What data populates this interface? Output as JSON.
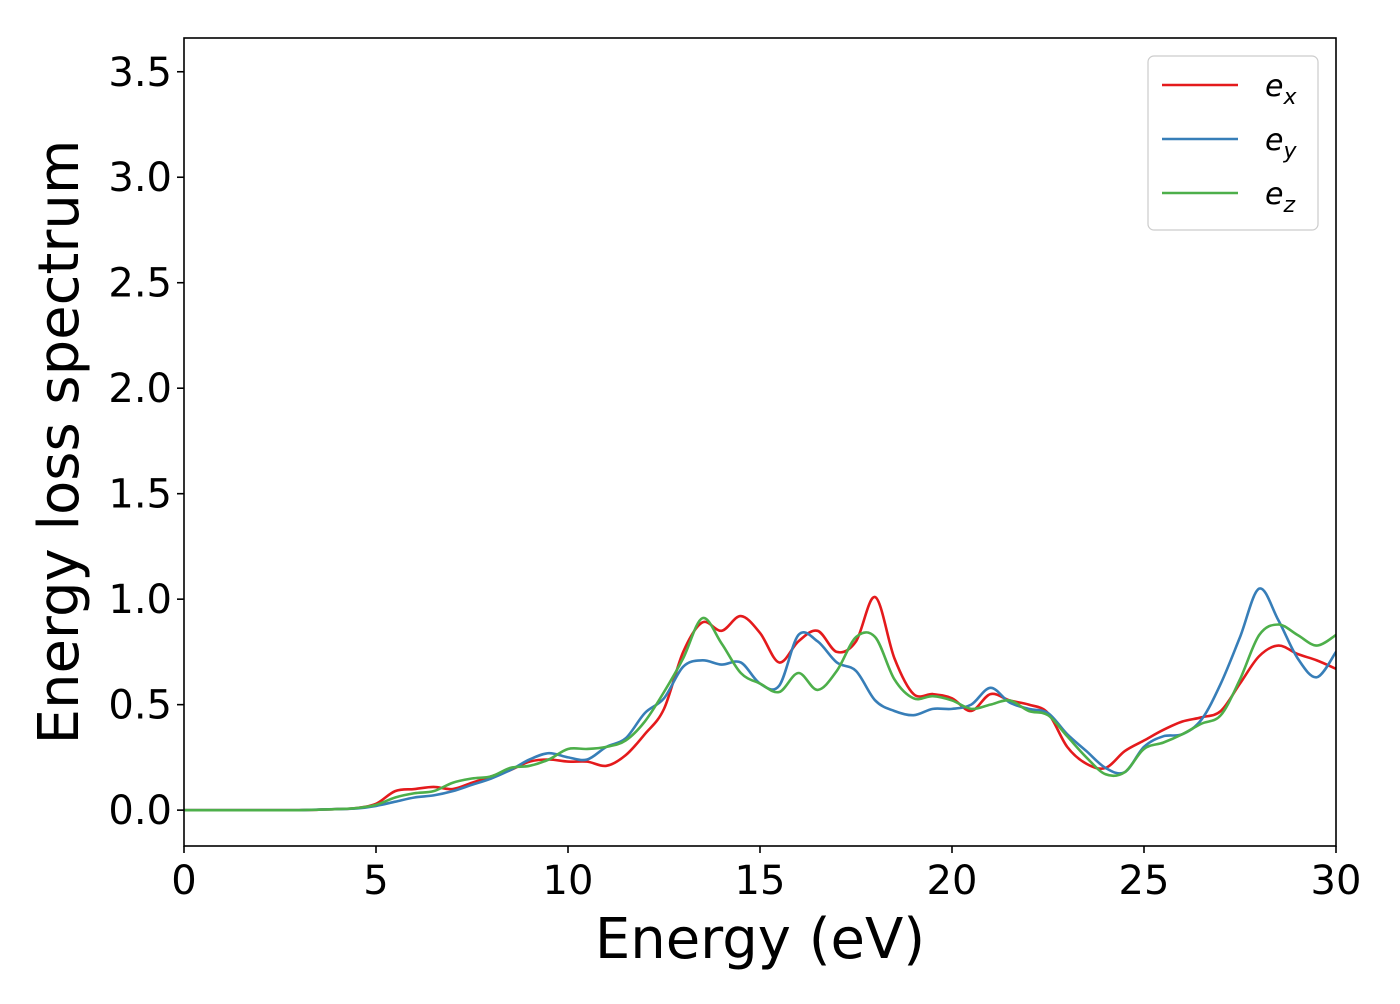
{
  "chart_data": {
    "type": "line",
    "title": "",
    "xlabel": "Energy (eV)",
    "ylabel": "Energy loss spectrum",
    "xlim": [
      0,
      30
    ],
    "ylim": [
      -0.17,
      3.66
    ],
    "xticks": [
      0,
      5,
      10,
      15,
      20,
      25,
      30
    ],
    "xtick_labels": [
      "0",
      "5",
      "10",
      "15",
      "20",
      "25",
      "30"
    ],
    "yticks": [
      0.0,
      0.5,
      1.0,
      1.5,
      2.0,
      2.5,
      3.0,
      3.5
    ],
    "ytick_labels": [
      "0.0",
      "0.5",
      "1.0",
      "1.5",
      "2.0",
      "2.5",
      "3.0",
      "3.5"
    ],
    "grid": false,
    "legend_position": "top-right",
    "series": [
      {
        "name": "e_x",
        "legend_base": "e",
        "legend_sub": "x",
        "color": "#e41a1c",
        "x": [
          0,
          1,
          2,
          3,
          4,
          4.5,
          5,
          5.5,
          6,
          6.5,
          7,
          7.5,
          8,
          8.5,
          9,
          9.5,
          10,
          10.5,
          11,
          11.5,
          12,
          12.5,
          13,
          13.5,
          14,
          14.5,
          15,
          15.5,
          16,
          16.5,
          17,
          17.5,
          18,
          18.5,
          19,
          19.5,
          20,
          20.5,
          21,
          21.5,
          22,
          22.5,
          23,
          23.5,
          24,
          24.5,
          25,
          25.5,
          26,
          26.5,
          27,
          27.5,
          28,
          28.5,
          29,
          29.5,
          30
        ],
        "y": [
          0.0,
          0.0,
          0.0,
          0.0,
          0.005,
          0.01,
          0.03,
          0.09,
          0.1,
          0.11,
          0.1,
          0.13,
          0.16,
          0.19,
          0.23,
          0.24,
          0.23,
          0.23,
          0.21,
          0.26,
          0.36,
          0.48,
          0.75,
          0.89,
          0.85,
          0.92,
          0.84,
          0.7,
          0.8,
          0.85,
          0.75,
          0.8,
          1.01,
          0.72,
          0.55,
          0.55,
          0.53,
          0.47,
          0.55,
          0.52,
          0.5,
          0.46,
          0.3,
          0.22,
          0.2,
          0.28,
          0.33,
          0.38,
          0.42,
          0.44,
          0.47,
          0.6,
          0.73,
          0.78,
          0.74,
          0.71,
          0.67
        ]
      },
      {
        "name": "e_y",
        "legend_base": "e",
        "legend_sub": "y",
        "color": "#377eb8",
        "x": [
          0,
          1,
          2,
          3,
          4,
          4.5,
          5,
          5.5,
          6,
          6.5,
          7,
          7.5,
          8,
          8.5,
          9,
          9.5,
          10,
          10.5,
          11,
          11.5,
          12,
          12.5,
          13,
          13.5,
          14,
          14.5,
          15,
          15.5,
          16,
          16.5,
          17,
          17.5,
          18,
          18.5,
          19,
          19.5,
          20,
          20.5,
          21,
          21.5,
          22,
          22.5,
          23,
          23.5,
          24,
          24.5,
          25,
          25.5,
          26,
          26.5,
          27,
          27.5,
          28,
          28.5,
          29,
          29.5,
          30
        ],
        "y": [
          0.0,
          0.0,
          0.0,
          0.0,
          0.005,
          0.008,
          0.02,
          0.04,
          0.06,
          0.07,
          0.09,
          0.12,
          0.15,
          0.19,
          0.24,
          0.27,
          0.25,
          0.24,
          0.3,
          0.34,
          0.46,
          0.53,
          0.68,
          0.71,
          0.69,
          0.7,
          0.6,
          0.59,
          0.83,
          0.8,
          0.7,
          0.66,
          0.52,
          0.47,
          0.45,
          0.48,
          0.48,
          0.5,
          0.58,
          0.51,
          0.48,
          0.46,
          0.36,
          0.28,
          0.2,
          0.18,
          0.3,
          0.35,
          0.36,
          0.43,
          0.6,
          0.82,
          1.05,
          0.9,
          0.72,
          0.63,
          0.75
        ]
      },
      {
        "name": "e_z",
        "legend_base": "e",
        "legend_sub": "z",
        "color": "#4daf4a",
        "x": [
          0,
          1,
          2,
          3,
          4,
          4.5,
          5,
          5.5,
          6,
          6.5,
          7,
          7.5,
          8,
          8.5,
          9,
          9.5,
          10,
          10.5,
          11,
          11.5,
          12,
          12.5,
          13,
          13.5,
          14,
          14.5,
          15,
          15.5,
          16,
          16.5,
          17,
          17.5,
          18,
          18.5,
          19,
          19.5,
          20,
          20.5,
          21,
          21.5,
          22,
          22.5,
          23,
          23.5,
          24,
          24.5,
          25,
          25.5,
          26,
          26.5,
          27,
          27.5,
          28,
          28.5,
          29,
          29.5,
          30
        ],
        "y": [
          0.0,
          0.0,
          0.0,
          0.0,
          0.005,
          0.01,
          0.025,
          0.06,
          0.08,
          0.09,
          0.13,
          0.15,
          0.16,
          0.2,
          0.21,
          0.24,
          0.29,
          0.29,
          0.3,
          0.33,
          0.42,
          0.56,
          0.72,
          0.91,
          0.79,
          0.65,
          0.6,
          0.56,
          0.65,
          0.57,
          0.66,
          0.82,
          0.82,
          0.62,
          0.53,
          0.54,
          0.52,
          0.48,
          0.5,
          0.52,
          0.47,
          0.45,
          0.35,
          0.25,
          0.17,
          0.18,
          0.29,
          0.32,
          0.36,
          0.41,
          0.45,
          0.62,
          0.83,
          0.88,
          0.83,
          0.78,
          0.83
        ]
      }
    ]
  }
}
